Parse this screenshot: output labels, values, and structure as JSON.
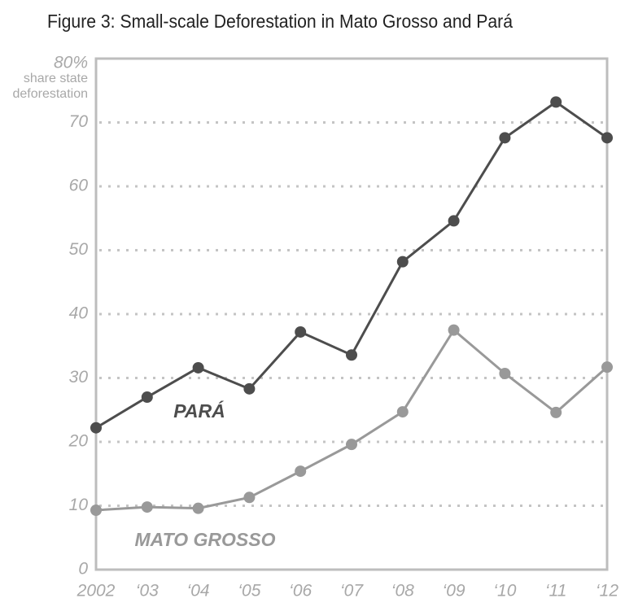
{
  "chart_data": {
    "type": "line",
    "title": "Figure 3: Small-scale Deforestation in Mato Grosso and Pará",
    "y_label_lines": [
      "share state",
      "deforestation"
    ],
    "categories": [
      "2002",
      "‘03",
      "‘04",
      "‘05",
      "‘06",
      "‘07",
      "‘08",
      "‘09",
      "‘10",
      "‘11",
      "‘12"
    ],
    "series": [
      {
        "name": "PARÁ",
        "color": "#4d4d4d",
        "values": [
          22.2,
          27.0,
          31.6,
          28.3,
          37.2,
          33.6,
          48.2,
          54.6,
          67.6,
          73.2,
          67.6
        ]
      },
      {
        "name": "MATO GROSSO",
        "color": "#999999",
        "values": [
          9.3,
          9.8,
          9.6,
          11.3,
          15.4,
          19.6,
          24.7,
          37.5,
          30.7,
          24.6,
          31.7
        ]
      }
    ],
    "ylim": [
      0,
      80
    ],
    "yticks": [
      0,
      10,
      20,
      30,
      40,
      50,
      60,
      70,
      {
        "value": 80,
        "label": "80%"
      }
    ],
    "grid": true
  }
}
